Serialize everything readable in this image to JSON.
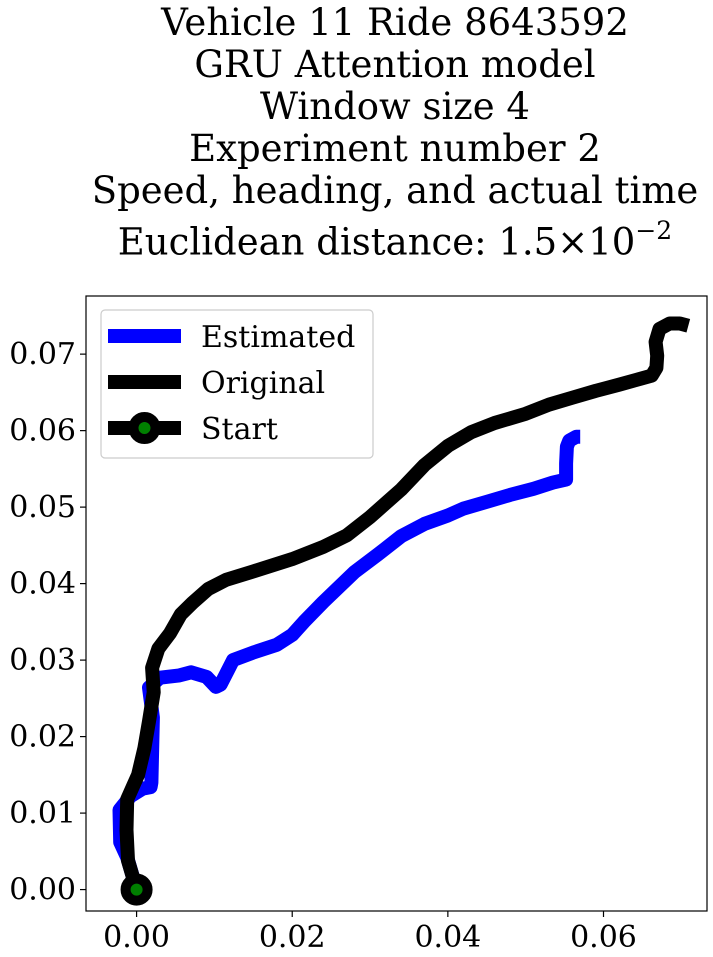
{
  "chart_data": {
    "type": "line",
    "title_lines": [
      "Vehicle 11 Ride 8643592",
      "GRU Attention model",
      "Window size 4",
      "Experiment number 2",
      "Speed, heading, and actual time"
    ],
    "metric_label": "Euclidean distance: 1.5",
    "metric_times": "×",
    "metric_base": "10",
    "metric_exponent": "−2",
    "xlim": [
      -0.0065,
      0.0733
    ],
    "ylim": [
      -0.0028,
      0.0776
    ],
    "xticks": [
      {
        "value": 0.0,
        "label": "0.00"
      },
      {
        "value": 0.02,
        "label": "0.02"
      },
      {
        "value": 0.04,
        "label": "0.04"
      },
      {
        "value": 0.06,
        "label": "0.06"
      }
    ],
    "yticks": [
      {
        "value": 0.0,
        "label": "0.00"
      },
      {
        "value": 0.01,
        "label": "0.01"
      },
      {
        "value": 0.02,
        "label": "0.02"
      },
      {
        "value": 0.03,
        "label": "0.03"
      },
      {
        "value": 0.04,
        "label": "0.04"
      },
      {
        "value": 0.05,
        "label": "0.05"
      },
      {
        "value": 0.06,
        "label": "0.06"
      },
      {
        "value": 0.07,
        "label": "0.07"
      }
    ],
    "legend_position": "top-left",
    "series": [
      {
        "name": "Estimated",
        "color": "#0000ff",
        "points": [
          [
            0.0,
            0.0
          ],
          [
            -0.0012,
            0.0042
          ],
          [
            -0.0021,
            0.0062
          ],
          [
            -0.0022,
            0.0104
          ],
          [
            -0.0008,
            0.0122
          ],
          [
            0.0008,
            0.0132
          ],
          [
            0.0018,
            0.0134
          ],
          [
            0.0019,
            0.014
          ],
          [
            0.0021,
            0.0225
          ],
          [
            0.0016,
            0.0264
          ],
          [
            0.003,
            0.0277
          ],
          [
            0.0055,
            0.028
          ],
          [
            0.007,
            0.0284
          ],
          [
            0.009,
            0.0278
          ],
          [
            0.0102,
            0.0265
          ],
          [
            0.0108,
            0.0268
          ],
          [
            0.0118,
            0.0288
          ],
          [
            0.0124,
            0.03
          ],
          [
            0.015,
            0.031
          ],
          [
            0.018,
            0.032
          ],
          [
            0.02,
            0.0333
          ],
          [
            0.0215,
            0.035
          ],
          [
            0.024,
            0.0376
          ],
          [
            0.028,
            0.0415
          ],
          [
            0.031,
            0.0438
          ],
          [
            0.034,
            0.0462
          ],
          [
            0.037,
            0.0478
          ],
          [
            0.04,
            0.0489
          ],
          [
            0.042,
            0.0498
          ],
          [
            0.045,
            0.0507
          ],
          [
            0.048,
            0.0516
          ],
          [
            0.051,
            0.0524
          ],
          [
            0.0535,
            0.0532
          ],
          [
            0.0552,
            0.0536
          ],
          [
            0.0552,
            0.0557
          ],
          [
            0.0553,
            0.0579
          ],
          [
            0.0556,
            0.0587
          ],
          [
            0.0565,
            0.0592
          ],
          [
            0.057,
            0.0592
          ]
        ]
      },
      {
        "name": "Original",
        "color": "#000000",
        "points": [
          [
            0.0,
            0.0
          ],
          [
            -0.0011,
            0.0038
          ],
          [
            -0.0013,
            0.0078
          ],
          [
            -0.0012,
            0.0118
          ],
          [
            0.0002,
            0.015
          ],
          [
            0.001,
            0.0185
          ],
          [
            0.0016,
            0.022
          ],
          [
            0.0022,
            0.0258
          ],
          [
            0.002,
            0.029
          ],
          [
            0.0028,
            0.0315
          ],
          [
            0.0043,
            0.0335
          ],
          [
            0.0057,
            0.036
          ],
          [
            0.0072,
            0.0375
          ],
          [
            0.0092,
            0.0393
          ],
          [
            0.0115,
            0.0405
          ],
          [
            0.015,
            0.0416
          ],
          [
            0.02,
            0.0432
          ],
          [
            0.024,
            0.0448
          ],
          [
            0.027,
            0.0463
          ],
          [
            0.03,
            0.0487
          ],
          [
            0.034,
            0.0523
          ],
          [
            0.037,
            0.0555
          ],
          [
            0.04,
            0.058
          ],
          [
            0.043,
            0.0598
          ],
          [
            0.046,
            0.061
          ],
          [
            0.05,
            0.0622
          ],
          [
            0.053,
            0.0634
          ],
          [
            0.056,
            0.0643
          ],
          [
            0.059,
            0.0652
          ],
          [
            0.062,
            0.066
          ],
          [
            0.0648,
            0.0668
          ],
          [
            0.0662,
            0.0672
          ],
          [
            0.0668,
            0.0682
          ],
          [
            0.0669,
            0.0698
          ],
          [
            0.0667,
            0.0716
          ],
          [
            0.0672,
            0.0733
          ],
          [
            0.0685,
            0.074
          ],
          [
            0.0698,
            0.074
          ],
          [
            0.0709,
            0.0737
          ]
        ]
      }
    ],
    "start": {
      "name": "Start",
      "x": 0.0,
      "y": 0.0,
      "fill": "#008000",
      "edge": "#000000",
      "line_color": "#000000"
    }
  }
}
